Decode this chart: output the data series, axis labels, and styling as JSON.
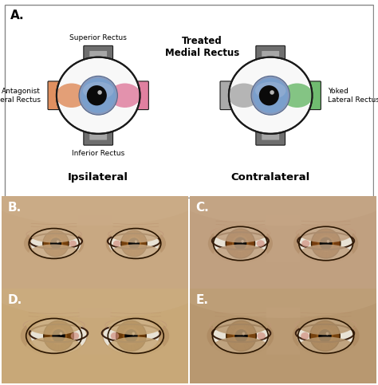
{
  "panel_a_label": "A.",
  "panel_b_label": "B.",
  "panel_c_label": "C.",
  "panel_d_label": "D.",
  "panel_e_label": "E.",
  "ipsilateral_label": "Ipsilateral",
  "contralateral_label": "Contralateral",
  "treated_label": "Treated\nMedial Rectus",
  "antagonist_label": "Antagonist\nLateral Rectus",
  "yoked_label": "Yoked\nLateral Rectus",
  "superior_label": "Superior Rectus",
  "inferior_label": "Inferior Rectus",
  "bg_color": "#ffffff",
  "eye_white": "#f8f8f8",
  "iris_blue": "#7a9fcc",
  "pupil_color": "#111111",
  "muscle_gray_dark": "#777777",
  "muscle_gray_light": "#bbbbbb",
  "muscle_orange": "#e09060",
  "muscle_pink": "#e080a0",
  "muscle_green": "#70bb70",
  "muscle_gray_med": "#999999",
  "border_color": "#1a1a1a",
  "label_fontsize": 6.5,
  "panel_label_fontsize": 11,
  "skin_B": "#c8a882",
  "skin_C": "#c0a080",
  "skin_D": "#c8a878",
  "skin_E": "#b89870",
  "iris_brown": "#7a4a10",
  "iris_brown2": "#8b5520"
}
